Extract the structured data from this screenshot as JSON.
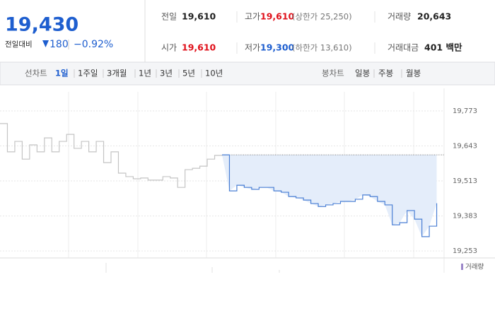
{
  "quote": {
    "price": "19,430",
    "change_label": "전일대비",
    "change": "180",
    "change_rate": "−0.92%"
  },
  "stats": {
    "prev_label": "전일",
    "prev": "19,610",
    "high_label": "고가",
    "high": "19,610",
    "upper_limit": "(상한가 25,250)",
    "volume_label": "거래량",
    "volume": "20,643",
    "open_label": "시가",
    "open": "19,610",
    "low_label": "저가",
    "low": "19,300",
    "lower_limit": "(하한가 13,610)",
    "amount_label": "거래대금",
    "amount": "401 백만"
  },
  "tabs": {
    "line_label": "선차트",
    "line": [
      "1일",
      "1주일",
      "3개월",
      "1년",
      "3년",
      "5년",
      "10년"
    ],
    "candle_label": "봉차트",
    "candle": [
      "일봉",
      "주봉",
      "월봉"
    ]
  },
  "chart_data": {
    "type": "line",
    "series": [
      {
        "color": "#c4c4c4",
        "values": [
          19726,
          19621,
          19660,
          19594,
          19647,
          19621,
          19673,
          19621,
          19660,
          19686,
          19634,
          19660,
          19621,
          19660,
          19581,
          19621,
          19542,
          19529,
          19521,
          19524,
          19516,
          19516,
          19529,
          19524,
          19489,
          19555,
          19560,
          19568,
          19594,
          19608,
          19610,
          null,
          null,
          null,
          null,
          null,
          null,
          null,
          null,
          null,
          null,
          null,
          null,
          null,
          null,
          null,
          null,
          null,
          null,
          null,
          null,
          null,
          null,
          null,
          null,
          null,
          null,
          null,
          null,
          null
        ]
      },
      {
        "color": "#4a7fd4",
        "values": [
          null,
          null,
          null,
          null,
          null,
          null,
          null,
          null,
          null,
          null,
          null,
          null,
          null,
          null,
          null,
          null,
          null,
          null,
          null,
          null,
          null,
          null,
          null,
          null,
          null,
          null,
          null,
          null,
          null,
          null,
          19610,
          19476,
          19497,
          19489,
          19482,
          19489,
          19489,
          19476,
          19471,
          19455,
          19450,
          19442,
          19429,
          19418,
          19424,
          19429,
          19437,
          19437,
          19445,
          19461,
          19455,
          19437,
          19424,
          19350,
          19358,
          19403,
          19371,
          19306,
          19345,
          19430
        ]
      }
    ],
    "reference_line": 19610,
    "fill_color": "#e4edfa",
    "ylim": [
      19227,
      19857
    ],
    "yticks": [
      {
        "value": 19253,
        "label": "19,253"
      },
      {
        "value": 19383,
        "label": "19,383"
      },
      {
        "value": 19513,
        "label": "19,513"
      },
      {
        "value": 19643,
        "label": "19,643"
      },
      {
        "value": 19773,
        "label": "19,773"
      }
    ],
    "grid": true,
    "volume_legend": "거래량"
  }
}
